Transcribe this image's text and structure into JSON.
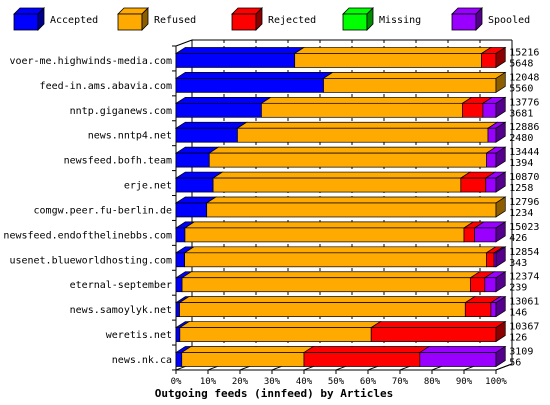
{
  "chart_data": {
    "type": "bar",
    "orientation": "horizontal",
    "stacked": true,
    "stack_mode": "percent",
    "title": "Outgoing feeds (innfeed) by Articles",
    "xlim": [
      0,
      100
    ],
    "x_tick_labels": [
      "0%",
      "10%",
      "20%",
      "30%",
      "40%",
      "50%",
      "60%",
      "70%",
      "80%",
      "90%",
      "100%"
    ],
    "legend_position": "top",
    "grid": true,
    "categories": [
      "voer-me.highwinds-media.com",
      "feed-in.ams.abavia.com",
      "nntp.giganews.com",
      "news.nntp4.net",
      "newsfeed.bofh.team",
      "erje.net",
      "comgw.peer.fu-berlin.de",
      "newsfeed.endofthelinebbs.com",
      "usenet.blueworldhosting.com",
      "eternal-september",
      "news.samoylyk.net",
      "weretis.net",
      "news.nk.ca"
    ],
    "totals": [
      "15216",
      "12048",
      "13776",
      "12886",
      "13444",
      "10870",
      "12796",
      "15023",
      "12854",
      "12374",
      "13061",
      "10367",
      "3109"
    ],
    "accepted_counts": [
      "5648",
      "5560",
      "3681",
      "2480",
      "1394",
      "1258",
      "1234",
      "426",
      "343",
      "239",
      "146",
      "126",
      "56"
    ],
    "series": [
      {
        "name": "Accepted",
        "color": "#0000ff",
        "values": [
          37.1,
          46.1,
          26.7,
          19.2,
          10.4,
          11.6,
          9.6,
          2.8,
          2.7,
          1.9,
          1.1,
          1.2,
          1.8
        ]
      },
      {
        "name": "Refused",
        "color": "#ffaa00",
        "values": [
          58.4,
          53.9,
          62.8,
          78.3,
          86.6,
          77.4,
          90.4,
          87.2,
          94.3,
          90.1,
          89.3,
          59.8,
          38.2
        ]
      },
      {
        "name": "Rejected",
        "color": "#ff0000",
        "values": [
          4.5,
          0,
          6.4,
          0,
          0,
          7.8,
          0,
          3.3,
          2.4,
          4.5,
          8.0,
          39.0,
          36.2
        ]
      },
      {
        "name": "Missing",
        "color": "#00ff00",
        "values": [
          0,
          0,
          0,
          0,
          0,
          0,
          0,
          0,
          0,
          0,
          0,
          0,
          0
        ]
      },
      {
        "name": "Spooled",
        "color": "#9900ff",
        "values": [
          0,
          0,
          4.1,
          2.5,
          3.0,
          3.2,
          0,
          6.7,
          0.6,
          3.5,
          1.6,
          0,
          23.8
        ]
      }
    ]
  }
}
